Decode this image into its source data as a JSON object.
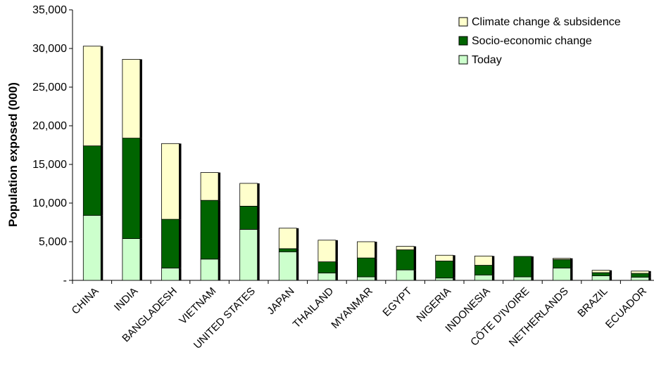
{
  "chart_data": {
    "type": "bar",
    "stacked": true,
    "ylabel": "Population exposed (000)",
    "ylim": [
      0,
      35000
    ],
    "y_ticks": [
      "-",
      "5,000",
      "10,000",
      "15,000",
      "20,000",
      "25,000",
      "30,000",
      "35,000"
    ],
    "categories": [
      "CHINA",
      "INDIA",
      "BANGLADESH",
      "VIETNAM",
      "UNITED STATES",
      "JAPAN",
      "THAILAND",
      "MYANMAR",
      "EGYPT",
      "NIGERIA",
      "INDONESIA",
      "CÔTE D'IVOIRE",
      "NETHERLANDS",
      "BRAZIL",
      "ECUADOR"
    ],
    "series": [
      {
        "name": "Today",
        "color": "#ccffcc",
        "values": [
          8400,
          5400,
          1600,
          2750,
          6600,
          3700,
          950,
          450,
          1350,
          300,
          700,
          450,
          1600,
          600,
          400
        ]
      },
      {
        "name": "Socio-economic change",
        "color": "#006400",
        "values": [
          9000,
          13000,
          6300,
          7600,
          3000,
          400,
          1450,
          2450,
          2600,
          2200,
          1250,
          2650,
          1100,
          400,
          500
        ]
      },
      {
        "name": "Climate change & subsidence",
        "color": "#ffffcc",
        "values": [
          12900,
          10200,
          9800,
          3600,
          2950,
          2650,
          2800,
          2100,
          450,
          750,
          1200,
          0,
          150,
          300,
          300
        ]
      }
    ],
    "legend_position": "top-right",
    "grid": false
  }
}
